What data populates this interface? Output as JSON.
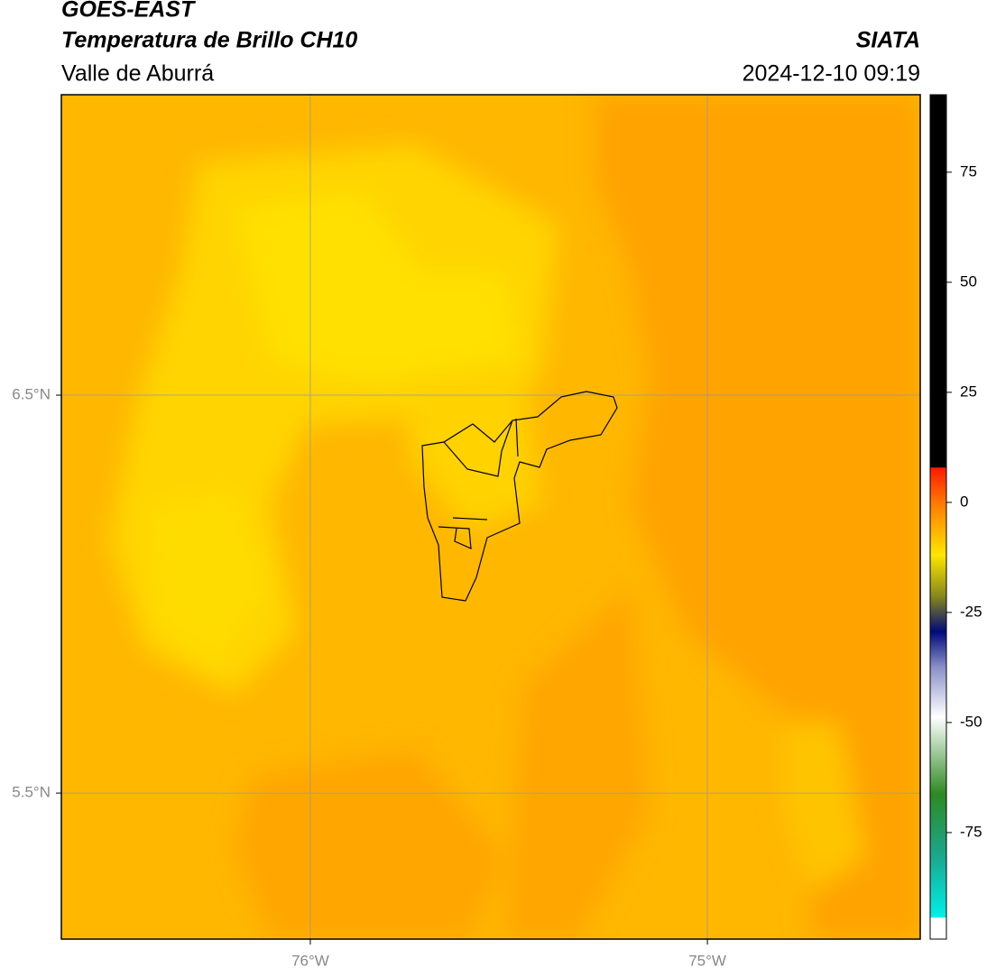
{
  "header": {
    "title": "GOES-EAST",
    "subtitle": "Temperatura de Brillo CH10",
    "region": "Valle de Aburrá",
    "source": "SIATA",
    "datetime": "2024-12-10 09:19"
  },
  "map": {
    "lonlim": [
      -76.627,
      -74.464
    ],
    "latlim": [
      5.133,
      7.255
    ],
    "lon_ticks": [
      {
        "value": -76,
        "label": "76°W"
      },
      {
        "value": -75,
        "label": "75°W"
      }
    ],
    "lat_ticks": [
      {
        "value": 6.5,
        "label": "6.5°N"
      },
      {
        "value": 5.5,
        "label": "5.5°N"
      }
    ]
  },
  "colorbar": {
    "lim": [
      -99.2,
      92.6
    ],
    "ticks": [
      75,
      50,
      25,
      0,
      -25,
      -50,
      -75
    ]
  }
}
